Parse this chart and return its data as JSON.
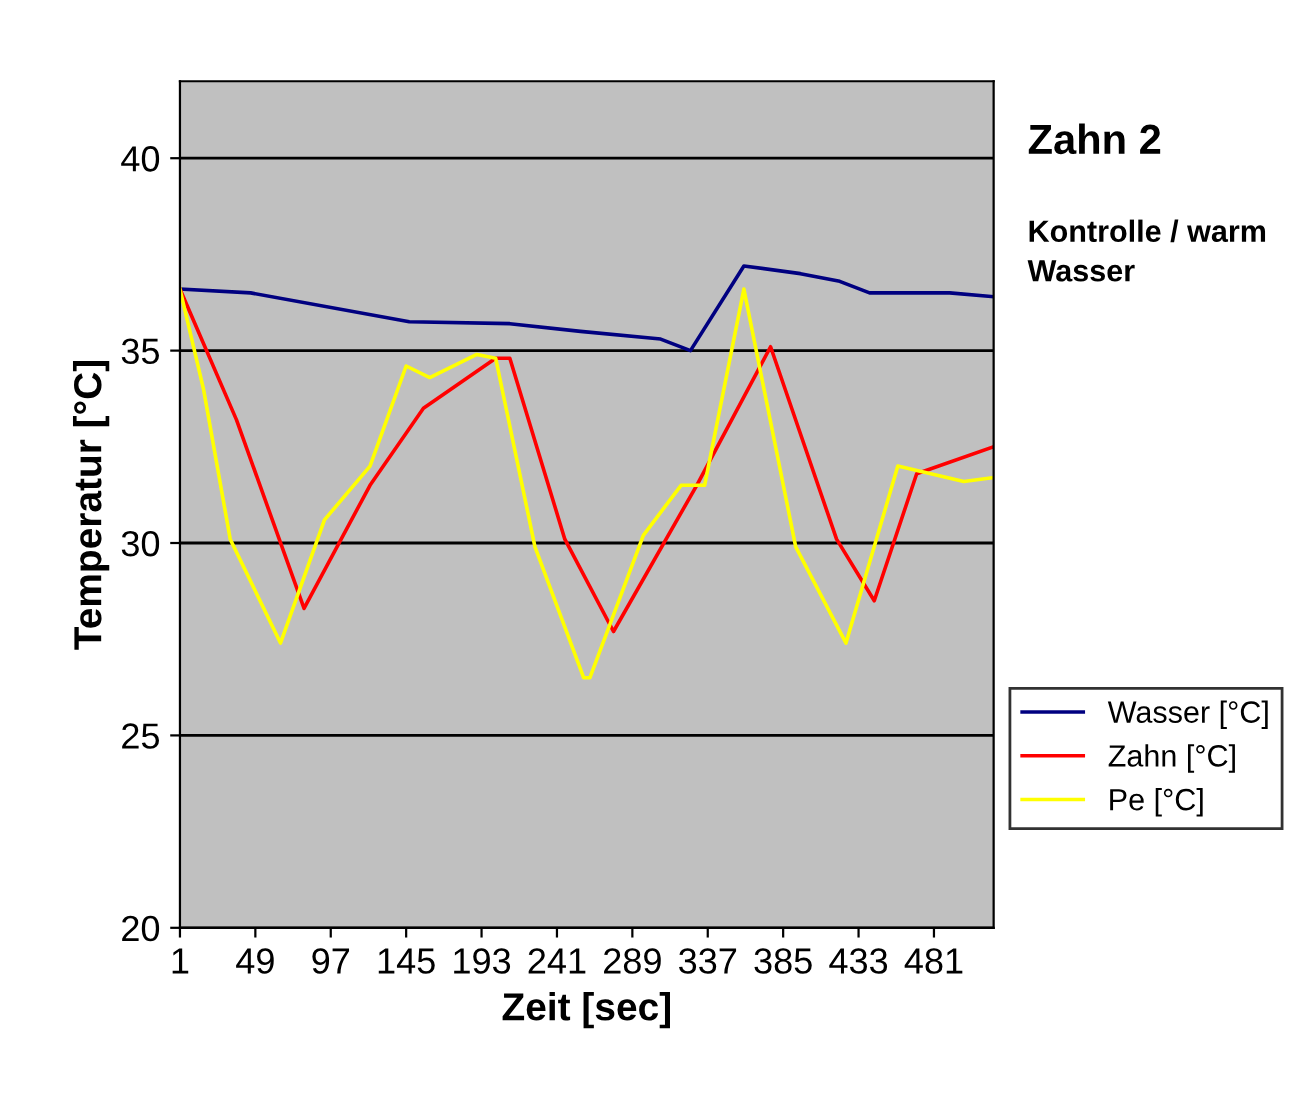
{
  "chart_data": {
    "type": "line",
    "title": "Zahn 2",
    "subtitle": "Kontrolle / warm Wasser",
    "xlabel": "Zeit [sec]",
    "ylabel": "Temperatur [°C]",
    "xlim": [
      1,
      519
    ],
    "xticks": [
      1,
      49,
      97,
      145,
      193,
      241,
      289,
      337,
      385,
      433,
      481
    ],
    "ylim": [
      20,
      42
    ],
    "yticks": [
      20,
      25,
      30,
      35,
      40
    ],
    "grid": "y",
    "legend": "right",
    "line_style": "solid",
    "marker": "none",
    "series": [
      {
        "name": "Wasser [°C]",
        "color": "#000080",
        "x": [
          1,
          46,
          147,
          211,
          256,
          307,
          326,
          360,
          396,
          421,
          440,
          491,
          519
        ],
        "values": [
          36.6,
          36.5,
          35.75,
          35.7,
          35.5,
          35.3,
          35.0,
          37.2,
          37.0,
          36.8,
          36.5,
          36.5,
          36.4
        ]
      },
      {
        "name": "Zahn [°C]",
        "color": "#ff0000",
        "x": [
          1,
          37,
          80,
          122,
          156,
          202,
          211,
          246,
          277,
          330,
          377,
          419,
          443,
          470,
          519
        ],
        "values": [
          36.6,
          33.2,
          28.3,
          31.5,
          33.5,
          34.8,
          34.8,
          30.1,
          27.7,
          31.5,
          35.1,
          30.1,
          28.5,
          31.8,
          32.5
        ]
      },
      {
        "name": "Pe [°C]",
        "color": "#ffff00",
        "x": [
          1,
          16,
          33,
          65,
          93,
          122,
          145,
          160,
          190,
          202,
          227,
          258,
          262,
          296,
          320,
          335,
          360,
          393,
          425,
          458,
          500,
          519
        ],
        "values": [
          36.6,
          34.0,
          30.1,
          27.4,
          30.6,
          32.0,
          34.6,
          34.3,
          34.9,
          34.8,
          29.9,
          26.5,
          26.5,
          30.2,
          31.5,
          31.5,
          36.6,
          29.9,
          27.4,
          32.0,
          31.6,
          31.7
        ]
      }
    ]
  }
}
